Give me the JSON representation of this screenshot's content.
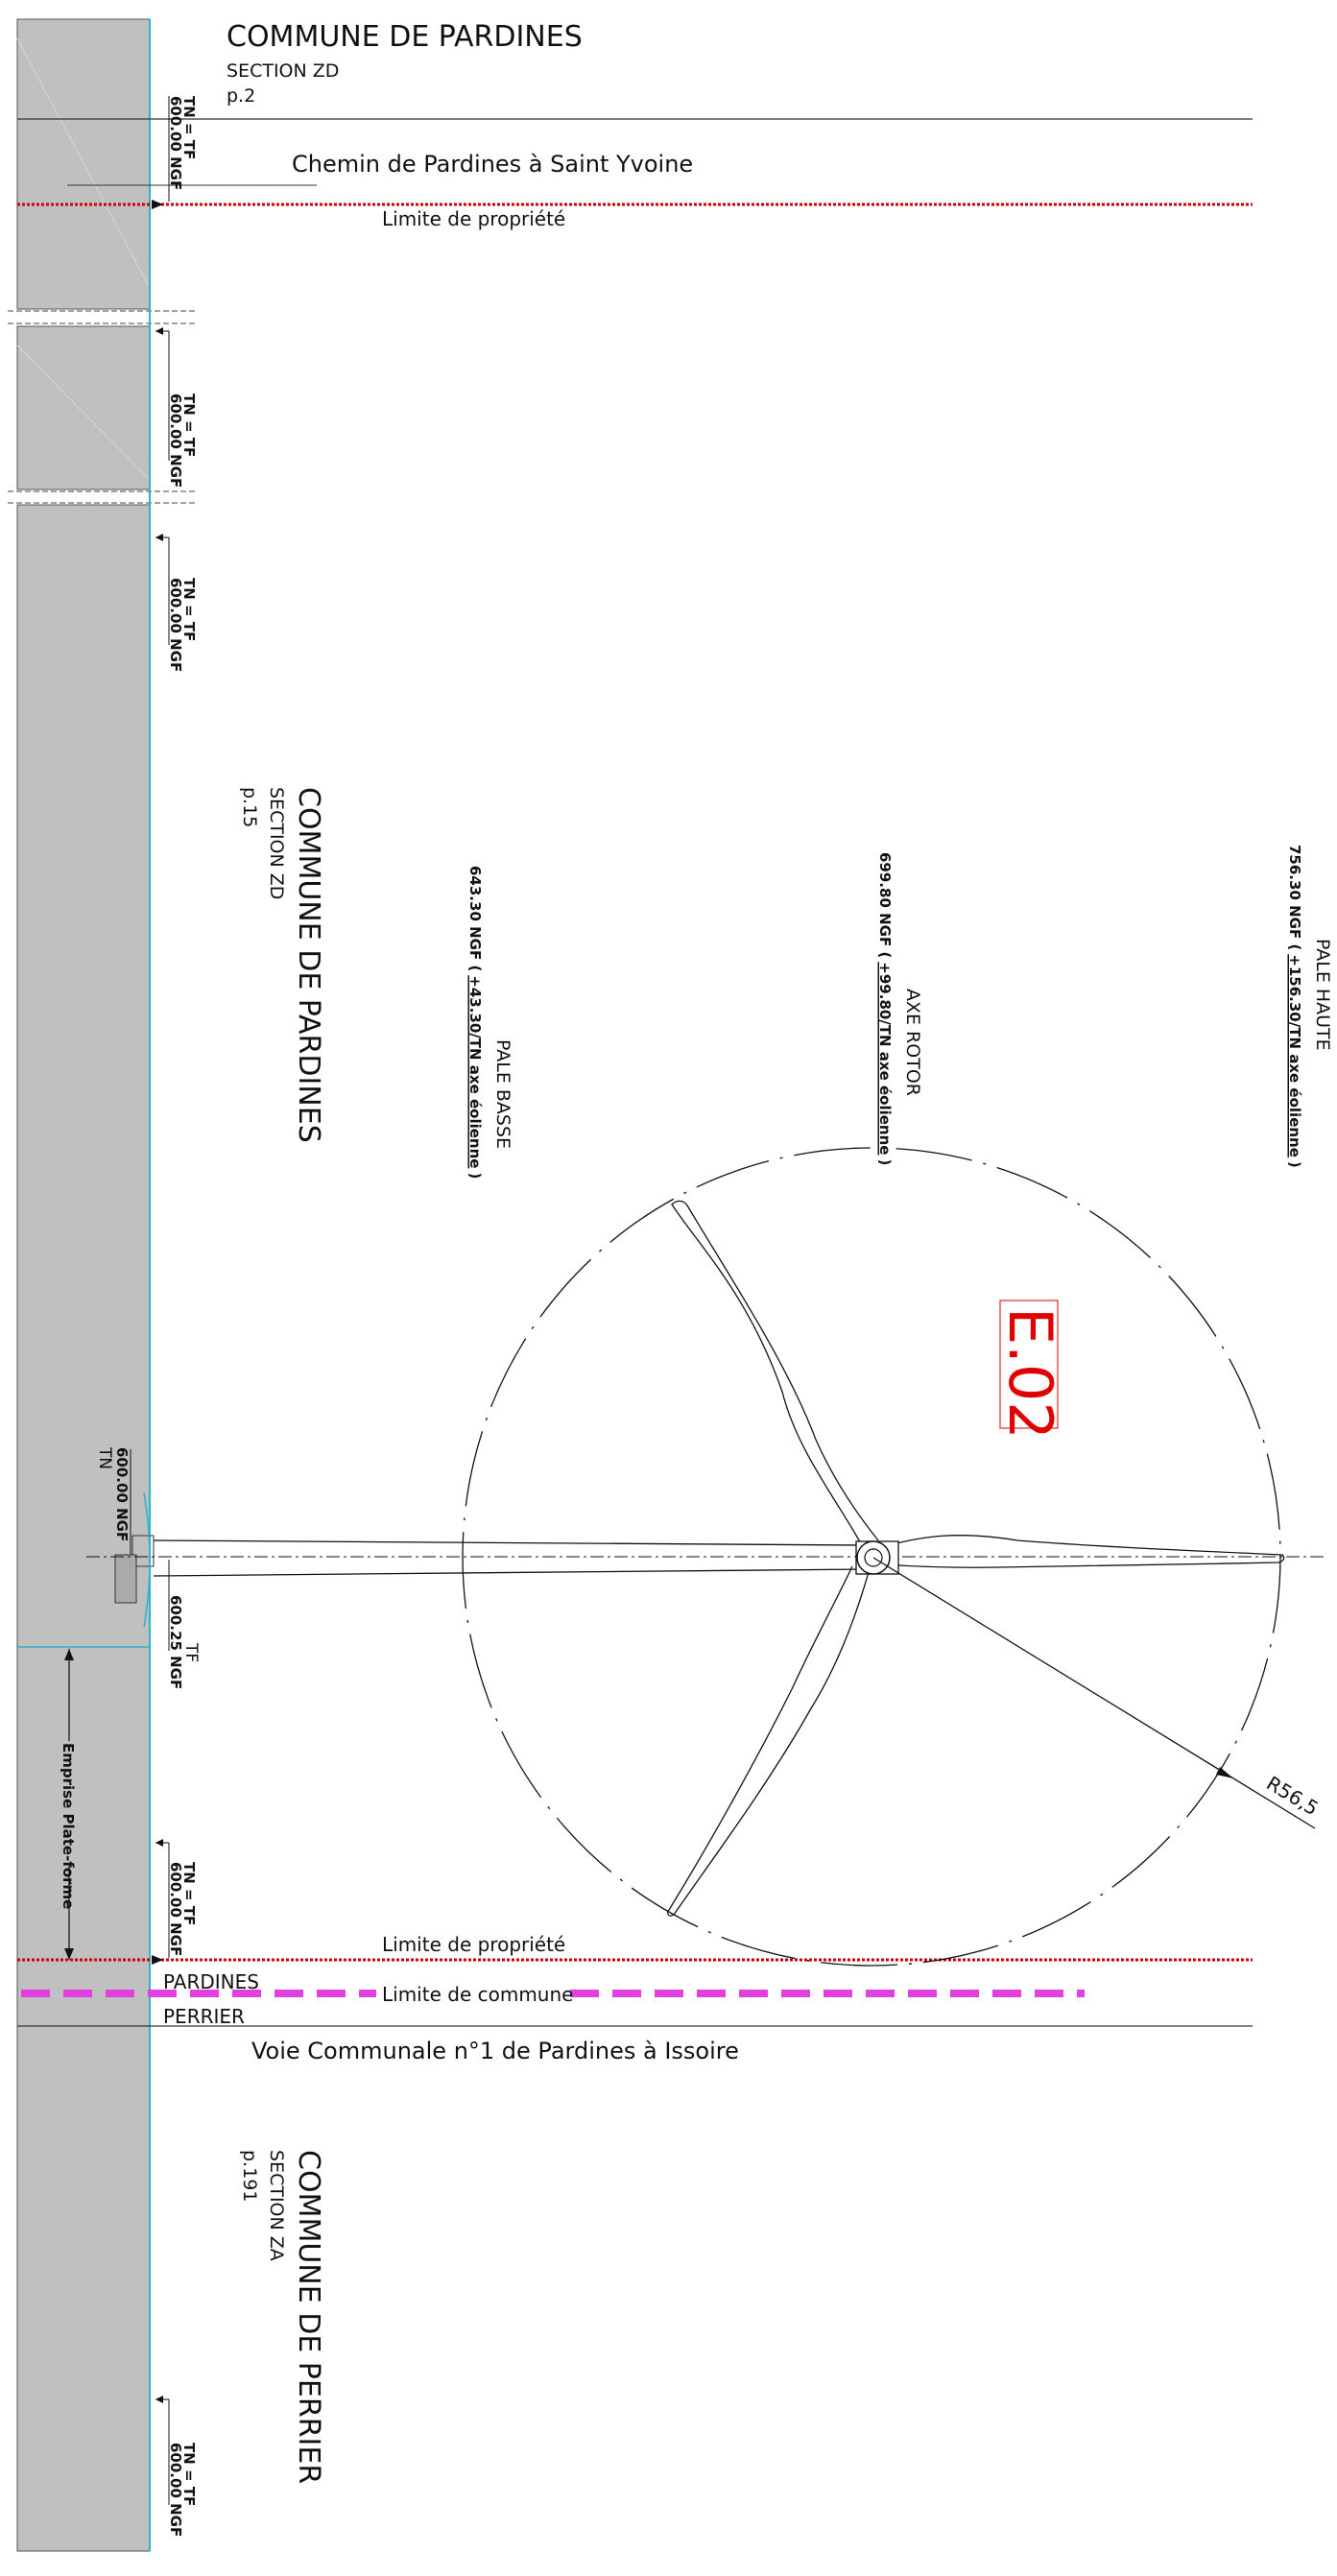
{
  "communes": {
    "pardines_top": {
      "name": "COMMUNE DE PARDINES",
      "section": "SECTION ZD",
      "page": "p.2"
    },
    "pardines_mid": {
      "name": "COMMUNE DE PARDINES",
      "section": "SECTION ZD",
      "page": "p.15"
    },
    "perrier": {
      "name": "COMMUNE DE PERRIER",
      "section": "SECTION ZA",
      "page": "p.191"
    }
  },
  "roads": {
    "top": "Chemin de Pardines à Saint Yvoine",
    "bottom": "Voie Communale n°1 de Pardines à Issoire"
  },
  "limits": {
    "property_top": "Limite de propriété",
    "property_bottom": "Limite de propriété",
    "commune": "Limite de commune",
    "side_north": "PARDINES",
    "side_south": "PERRIER"
  },
  "ground_markers": {
    "tn_tf": "TN = TF",
    "ngf_600": "600.00 NGF",
    "tn": "TN",
    "tf": "TF",
    "ngf_60025": "600.25 NGF"
  },
  "platform_label": "Emprise Plate-forme",
  "turbine": {
    "id": "E.02",
    "radius_label": "R56,5",
    "levels": {
      "low_blade": {
        "name": "PALE BASSE",
        "ngf": "643.30 NGF (",
        "rel": "+43.30/TN axe éolienne",
        "close": ")"
      },
      "rotor": {
        "name": "AXE ROTOR",
        "ngf": "699.80 NGF (",
        "rel": "+99.80/TN axe éolienne",
        "close": ")"
      },
      "high_blade": {
        "name": "PALE HAUTE",
        "ngf": "756.30 NGF (",
        "rel": "+156.30/TN axe éolienne",
        "close": ")"
      }
    }
  },
  "colors": {
    "ground": "#c0c0c0",
    "property_line": "#cc0000",
    "commune_line": "#e040e0",
    "turbine_id": "#e00000",
    "cyan_edge": "#2bb5c8"
  }
}
